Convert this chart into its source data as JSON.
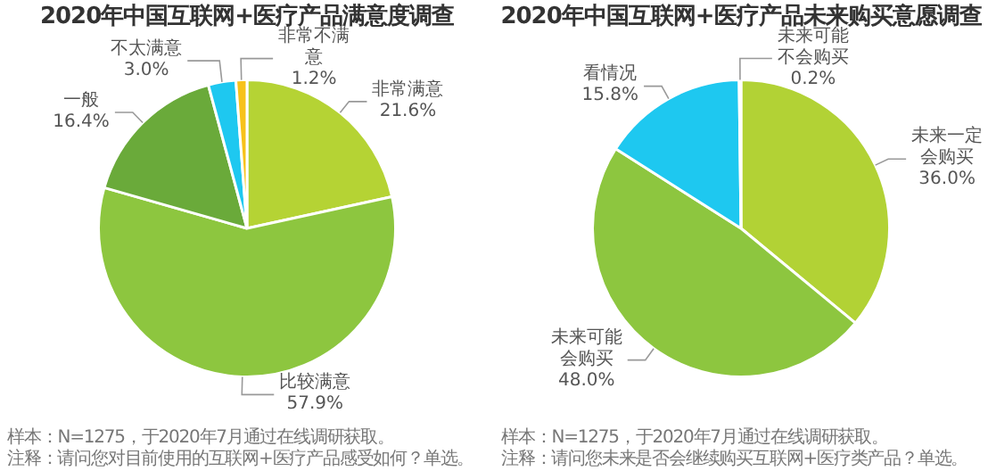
{
  "chart_data": [
    {
      "type": "pie",
      "title": "2020年中国互联网+医疗产品满意度调查",
      "categories": [
        "非常满意",
        "比较满意",
        "一般",
        "不太满意",
        "非常不满意"
      ],
      "values": [
        21.6,
        57.9,
        16.4,
        3.0,
        1.2
      ],
      "value_labels": [
        "21.6%",
        "57.9%",
        "16.4%",
        "3.0%",
        "1.2%"
      ],
      "colors": [
        "#b5d334",
        "#8dc63f",
        "#6aaa3a",
        "#1ec8f0",
        "#f7c21a"
      ],
      "legend": false,
      "annotations": [
        "样本：N=1275，于2020年7月通过在线调研获取。",
        "注释：请问您对目前使用的互联网+医疗产品感受如何？单选。"
      ]
    },
    {
      "type": "pie",
      "title": "2020年中国互联网+医疗产品未来购买意愿调查",
      "categories": [
        "未来一定会购买",
        "未来可能会购买",
        "看情况",
        "未来可能不会购买"
      ],
      "values": [
        36.0,
        48.0,
        15.8,
        0.2
      ],
      "value_labels": [
        "36.0%",
        "48.0%",
        "15.8%",
        "0.2%"
      ],
      "colors": [
        "#b2d235",
        "#8dc63f",
        "#1ec8f0",
        "#f2c12e"
      ],
      "legend": false,
      "annotations": [
        "样本：N=1275，于2020年7月通过在线调研获取。",
        "注释：请问您未来是否会继续购买互联网+医疗类产品？单选。"
      ]
    }
  ]
}
